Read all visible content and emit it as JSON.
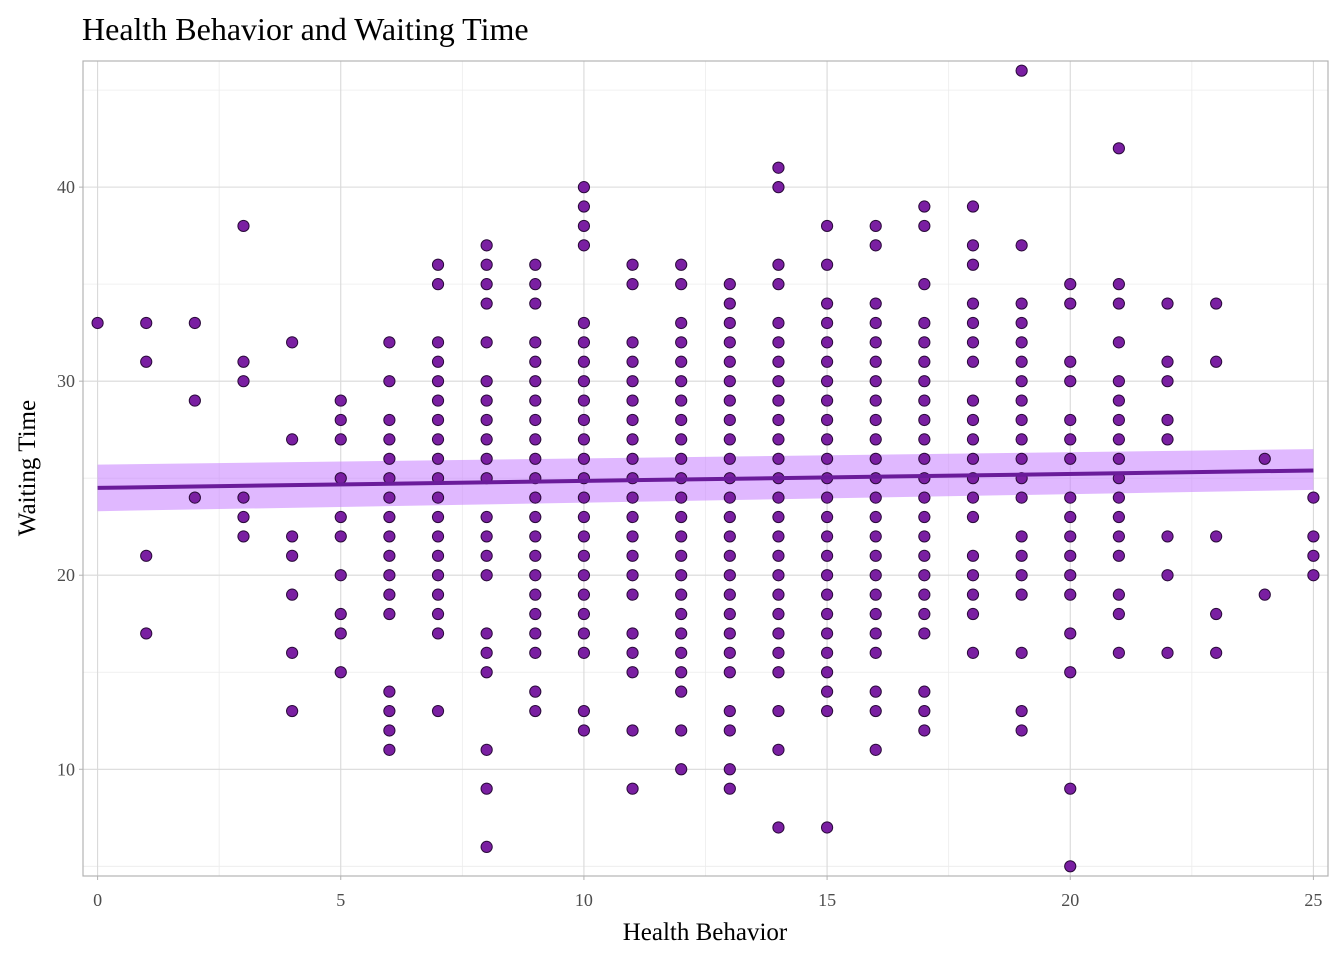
{
  "colors": {
    "point_fill": "#7a1fa2",
    "point_stroke": "#2a0a3a",
    "line": "#6a1b9a",
    "ribbon": "#c77dff"
  },
  "chart_data": {
    "type": "scatter",
    "title": "Health Behavior and Waiting Time",
    "xlabel": "Health Behavior",
    "ylabel": "Waiting Time",
    "xlim": [
      -0.3,
      25.3
    ],
    "ylim": [
      4.5,
      46.5
    ],
    "x_ticks": [
      0,
      5,
      10,
      15,
      20,
      25
    ],
    "y_ticks": [
      10,
      20,
      30,
      40
    ],
    "x_tick_labels": [
      "0",
      "5",
      "10",
      "15",
      "20",
      "25"
    ],
    "y_tick_labels": [
      "10",
      "20",
      "30",
      "40"
    ],
    "grid": true,
    "legend": "none",
    "groups": [
      {
        "x": 0,
        "y": [
          33
        ]
      },
      {
        "x": 1,
        "y": [
          33,
          31,
          21,
          17
        ]
      },
      {
        "x": 2,
        "y": [
          33,
          29,
          24
        ]
      },
      {
        "x": 3,
        "y": [
          38,
          31,
          30,
          24,
          23,
          22
        ]
      },
      {
        "x": 4,
        "y": [
          32,
          27,
          22,
          21,
          19,
          16,
          13
        ]
      },
      {
        "x": 5,
        "y": [
          29,
          28,
          27,
          25,
          23,
          22,
          20,
          18,
          17,
          15
        ]
      },
      {
        "x": 6,
        "y": [
          32,
          30,
          28,
          27,
          26,
          25,
          24,
          23,
          22,
          21,
          20,
          19,
          18,
          14,
          13,
          12,
          11
        ]
      },
      {
        "x": 7,
        "y": [
          36,
          35,
          32,
          31,
          30,
          29,
          28,
          27,
          26,
          25,
          24,
          23,
          22,
          21,
          20,
          19,
          18,
          17,
          13
        ]
      },
      {
        "x": 8,
        "y": [
          37,
          36,
          35,
          34,
          32,
          30,
          29,
          28,
          27,
          26,
          25,
          23,
          22,
          21,
          20,
          17,
          16,
          15,
          11,
          9,
          6
        ]
      },
      {
        "x": 9,
        "y": [
          36,
          35,
          34,
          32,
          31,
          30,
          29,
          28,
          27,
          26,
          25,
          24,
          23,
          22,
          21,
          20,
          19,
          18,
          17,
          16,
          14,
          13
        ]
      },
      {
        "x": 10,
        "y": [
          40,
          39,
          38,
          37,
          33,
          32,
          31,
          30,
          29,
          28,
          27,
          26,
          25,
          24,
          23,
          22,
          21,
          20,
          19,
          18,
          17,
          16,
          13,
          12
        ]
      },
      {
        "x": 11,
        "y": [
          36,
          35,
          32,
          31,
          30,
          29,
          28,
          27,
          26,
          25,
          24,
          23,
          22,
          21,
          20,
          19,
          17,
          16,
          15,
          12,
          9
        ]
      },
      {
        "x": 12,
        "y": [
          36,
          35,
          33,
          32,
          31,
          30,
          29,
          28,
          27,
          26,
          25,
          24,
          23,
          22,
          21,
          20,
          19,
          18,
          17,
          16,
          15,
          14,
          12,
          10
        ]
      },
      {
        "x": 13,
        "y": [
          35,
          34,
          33,
          32,
          31,
          30,
          29,
          28,
          27,
          26,
          25,
          24,
          23,
          22,
          21,
          20,
          19,
          18,
          17,
          16,
          15,
          13,
          12,
          10,
          9
        ]
      },
      {
        "x": 14,
        "y": [
          41,
          40,
          36,
          35,
          33,
          32,
          31,
          30,
          29,
          28,
          27,
          26,
          25,
          24,
          23,
          22,
          21,
          20,
          19,
          18,
          17,
          16,
          15,
          13,
          11,
          7
        ]
      },
      {
        "x": 15,
        "y": [
          38,
          36,
          34,
          33,
          32,
          31,
          30,
          29,
          28,
          27,
          26,
          25,
          24,
          23,
          22,
          21,
          20,
          19,
          18,
          17,
          16,
          15,
          14,
          13,
          7
        ]
      },
      {
        "x": 16,
        "y": [
          38,
          37,
          34,
          33,
          32,
          31,
          30,
          29,
          28,
          27,
          26,
          25,
          24,
          23,
          22,
          21,
          20,
          19,
          18,
          17,
          16,
          14,
          13,
          11
        ]
      },
      {
        "x": 17,
        "y": [
          39,
          38,
          35,
          33,
          32,
          31,
          30,
          29,
          28,
          27,
          26,
          25,
          24,
          23,
          22,
          21,
          20,
          19,
          18,
          17,
          14,
          13,
          12
        ]
      },
      {
        "x": 18,
        "y": [
          39,
          37,
          36,
          34,
          33,
          32,
          31,
          29,
          28,
          27,
          26,
          25,
          24,
          23,
          21,
          20,
          19,
          18,
          16
        ]
      },
      {
        "x": 19,
        "y": [
          46,
          37,
          34,
          33,
          32,
          31,
          30,
          29,
          28,
          27,
          26,
          25,
          24,
          22,
          21,
          20,
          19,
          16,
          13,
          12
        ]
      },
      {
        "x": 20,
        "y": [
          35,
          34,
          31,
          30,
          28,
          27,
          26,
          24,
          23,
          22,
          21,
          20,
          19,
          17,
          15,
          9,
          5
        ]
      },
      {
        "x": 21,
        "y": [
          42,
          35,
          34,
          32,
          30,
          29,
          28,
          27,
          26,
          25,
          24,
          23,
          22,
          21,
          19,
          18,
          16
        ]
      },
      {
        "x": 22,
        "y": [
          34,
          31,
          30,
          28,
          27,
          22,
          20,
          16
        ]
      },
      {
        "x": 23,
        "y": [
          34,
          31,
          22,
          18,
          16
        ]
      },
      {
        "x": 24,
        "y": [
          26,
          19
        ]
      },
      {
        "x": 25,
        "y": [
          24,
          22,
          21,
          20
        ]
      }
    ],
    "trend": {
      "type": "linear",
      "x_start": 0,
      "y_start": 24.5,
      "x_end": 25,
      "y_end": 25.4,
      "ci_lower_start": 23.3,
      "ci_upper_start": 25.7,
      "ci_lower_end": 24.4,
      "ci_upper_end": 26.5
    }
  }
}
